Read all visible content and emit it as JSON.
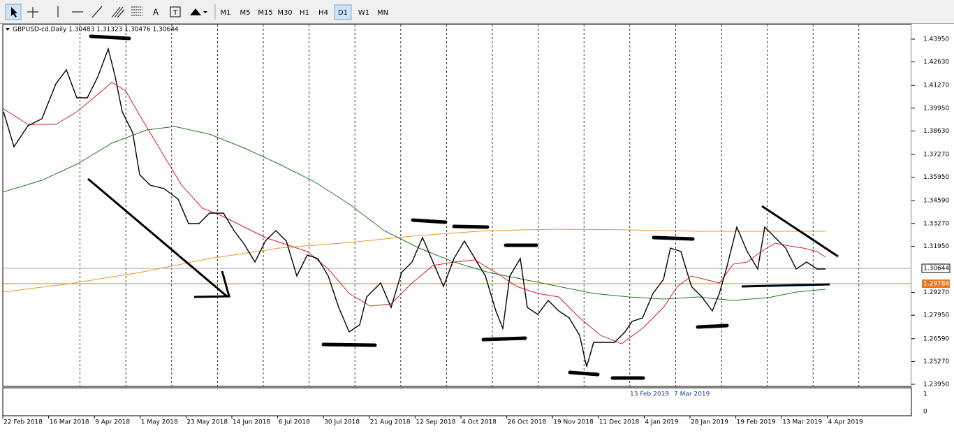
{
  "toolbar": {
    "timeframes": [
      "M1",
      "M5",
      "M15",
      "M30",
      "H1",
      "H4",
      "D1",
      "W1",
      "MN"
    ],
    "active": "D1"
  },
  "chart": {
    "header": "GBPUSD-cd,Daily  1.30483 1.31323 1.30476 1.30644",
    "price_axis": [
      "1.43950",
      "1.42630",
      "1.41270",
      "1.39950",
      "1.38630",
      "1.37270",
      "1.35950",
      "1.34590",
      "1.33270",
      "1.31950",
      "1.29270",
      "1.27950",
      "1.26590",
      "1.25270",
      "1.23950"
    ],
    "current_price": "1.30644",
    "level_price": "1.29784",
    "indicator_axis": [
      "1",
      "0"
    ],
    "indicator_dates": [
      "13 Feb 2019",
      "7 Mar 2019"
    ],
    "date_axis": [
      "22 Feb 2018",
      "16 Mar 2018",
      "9 Apr 2018",
      "1 May 2018",
      "23 May 2018",
      "14 Jun 2018",
      "6 Jul 2018",
      "30 Jul 2018",
      "21 Aug 2018",
      "12 Sep 2018",
      "4 Oct 2018",
      "26 Oct 2018",
      "19 Nov 2018",
      "11 Dec 2018",
      "4 Jan 2019",
      "28 Jan 2019",
      "19 Feb 2019",
      "13 Mar 2019",
      "4 Apr 2019"
    ]
  }
}
